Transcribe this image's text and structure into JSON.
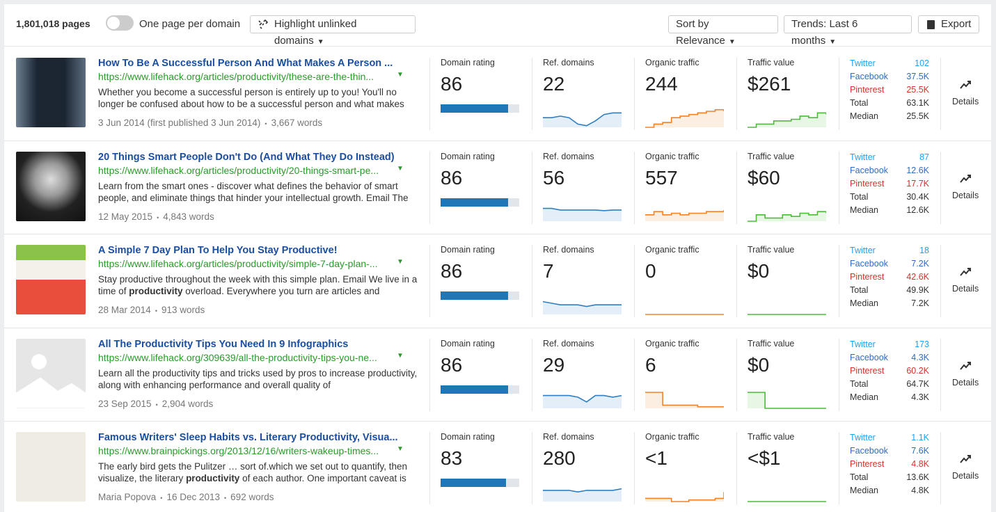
{
  "header": {
    "count": "1,801,018 pages",
    "toggle_label": "One page per domain",
    "highlight": "Highlight unlinked domains",
    "sort": "Sort by Relevance",
    "trends": "Trends: Last 6 months",
    "export": "Export"
  },
  "metric_labels": {
    "domain_rating": "Domain rating",
    "ref_domains": "Ref. domains",
    "organic_traffic": "Organic traffic",
    "traffic_value": "Traffic value"
  },
  "social_labels": [
    "Twitter",
    "Facebook",
    "Pinterest",
    "Total",
    "Median"
  ],
  "details_label": "Details",
  "domain_rating_range": [
    0,
    100
  ],
  "trend_range": [
    0,
    10
  ],
  "rows": [
    {
      "title": "How To Be A Successful Person And What Makes A Person ...",
      "url": "https://www.lifehack.org/articles/productivity/these-are-the-thin...",
      "description": [
        "Whether you become a successful person is entirely up to you! You'll no longer be confused about how to be a successful person and what makes"
      ],
      "meta": [
        "3 Jun 2014 (first published 3 Jun 2014)",
        "3,667 words"
      ],
      "domain_rating": 86,
      "ref_domains": 22,
      "organic_traffic": 244,
      "traffic_value": "$261",
      "social": [
        "102",
        "37.5K",
        "25.5K",
        "63.1K",
        "25.5K"
      ],
      "trends": {
        "ref_domains": [
          3,
          3,
          3.5,
          3,
          1,
          0.5,
          2,
          4,
          4.5,
          4.5
        ],
        "organic_traffic": [
          0,
          1,
          1.5,
          3,
          3.5,
          4,
          4.5,
          5,
          5.5,
          5
        ],
        "traffic_value": [
          0,
          1,
          1,
          2,
          2,
          2.5,
          3.5,
          3,
          4.5,
          4
        ]
      }
    },
    {
      "title": "20 Things Smart People Don't Do (And What They Do Instead)",
      "url": "https://www.lifehack.org/articles/productivity/20-things-smart-pe...",
      "description": [
        "Learn from the smart ones - discover what defines the behavior of smart people, and eliminate things that hinder your intellectual growth. Email The"
      ],
      "meta": [
        "12 May 2015",
        "4,843 words"
      ],
      "domain_rating": 86,
      "ref_domains": 56,
      "organic_traffic": 557,
      "traffic_value": "$60",
      "social": [
        "87",
        "12.6K",
        "17.7K",
        "30.4K",
        "12.6K"
      ],
      "trends": {
        "ref_domains": [
          4,
          4,
          3.5,
          3.5,
          3.5,
          3.5,
          3.5,
          3.3,
          3.5,
          3.5
        ],
        "organic_traffic": [
          2,
          3,
          2,
          2.5,
          2,
          2.5,
          2.5,
          3,
          3,
          3.5
        ],
        "traffic_value": [
          0,
          2,
          1,
          1,
          2,
          1.5,
          2.5,
          2,
          3,
          2.5
        ]
      }
    },
    {
      "title": "A Simple 7 Day Plan To Help You Stay Productive!",
      "url": "https://www.lifehack.org/articles/productivity/simple-7-day-plan-...",
      "description": [
        "Stay productive throughout the week with this simple plan. Email We live in a time of ",
        "productivity",
        " overload. Everywhere you turn are articles and"
      ],
      "meta": [
        "28 Mar 2014",
        "913 words"
      ],
      "domain_rating": 86,
      "ref_domains": 7,
      "organic_traffic": 0,
      "traffic_value": "$0",
      "social": [
        "18",
        "7.2K",
        "42.6K",
        "49.9K",
        "7.2K"
      ],
      "trends": {
        "ref_domains": [
          4,
          3.5,
          3,
          3,
          3,
          2.5,
          3,
          3,
          3,
          3
        ],
        "organic_traffic": [
          0,
          0,
          0,
          0,
          0,
          0,
          0,
          0,
          0,
          0
        ],
        "traffic_value": [
          0,
          0,
          0,
          0,
          0,
          0,
          0,
          0,
          0,
          0
        ]
      }
    },
    {
      "title": "All The Productivity Tips You Need In 9 Infographics",
      "url": "https://www.lifehack.org/309639/all-the-productivity-tips-you-ne...",
      "description": [
        "Learn all the productivity tips and tricks used by pros to increase productivity, along with enhancing performance and overall quality of"
      ],
      "meta": [
        "23 Sep 2015",
        "2,904 words"
      ],
      "domain_rating": 86,
      "ref_domains": 29,
      "organic_traffic": 6,
      "traffic_value": "$0",
      "social": [
        "173",
        "4.3K",
        "60.2K",
        "64.7K",
        "4.3K"
      ],
      "trends": {
        "ref_domains": [
          4,
          4,
          4,
          4,
          3.5,
          2,
          4,
          4,
          3.5,
          4
        ],
        "organic_traffic": [
          5,
          5,
          1,
          1,
          1,
          1,
          0.5,
          0.5,
          0.5,
          0.5
        ],
        "traffic_value": [
          5,
          5,
          0,
          0,
          0,
          0,
          0,
          0,
          0,
          0
        ]
      }
    },
    {
      "title": "Famous Writers' Sleep Habits vs. Literary Productivity, Visua...",
      "url": "https://www.brainpickings.org/2013/12/16/writers-wakeup-times...",
      "description": [
        "The early bird gets the Pulitzer … sort of.which we set out to quantify, then visualize, the literary ",
        "productivity",
        " of each author. One important caveat is"
      ],
      "meta": [
        "Maria Popova",
        "16 Dec 2013",
        "692 words"
      ],
      "domain_rating": 83,
      "ref_domains": 280,
      "organic_traffic": "<1",
      "traffic_value": "<$1",
      "social": [
        "1.1K",
        "7.6K",
        "4.8K",
        "13.6K",
        "4.8K"
      ],
      "trends": {
        "ref_domains": [
          3.5,
          3.5,
          3.5,
          3.5,
          3,
          3.5,
          3.5,
          3.5,
          3.5,
          4
        ],
        "organic_traffic": [
          1,
          1,
          1,
          0,
          0,
          0.5,
          0.5,
          0.5,
          1,
          3
        ],
        "traffic_value": [
          0,
          0,
          0,
          0,
          0,
          0,
          0,
          0,
          0,
          0
        ]
      }
    }
  ]
}
